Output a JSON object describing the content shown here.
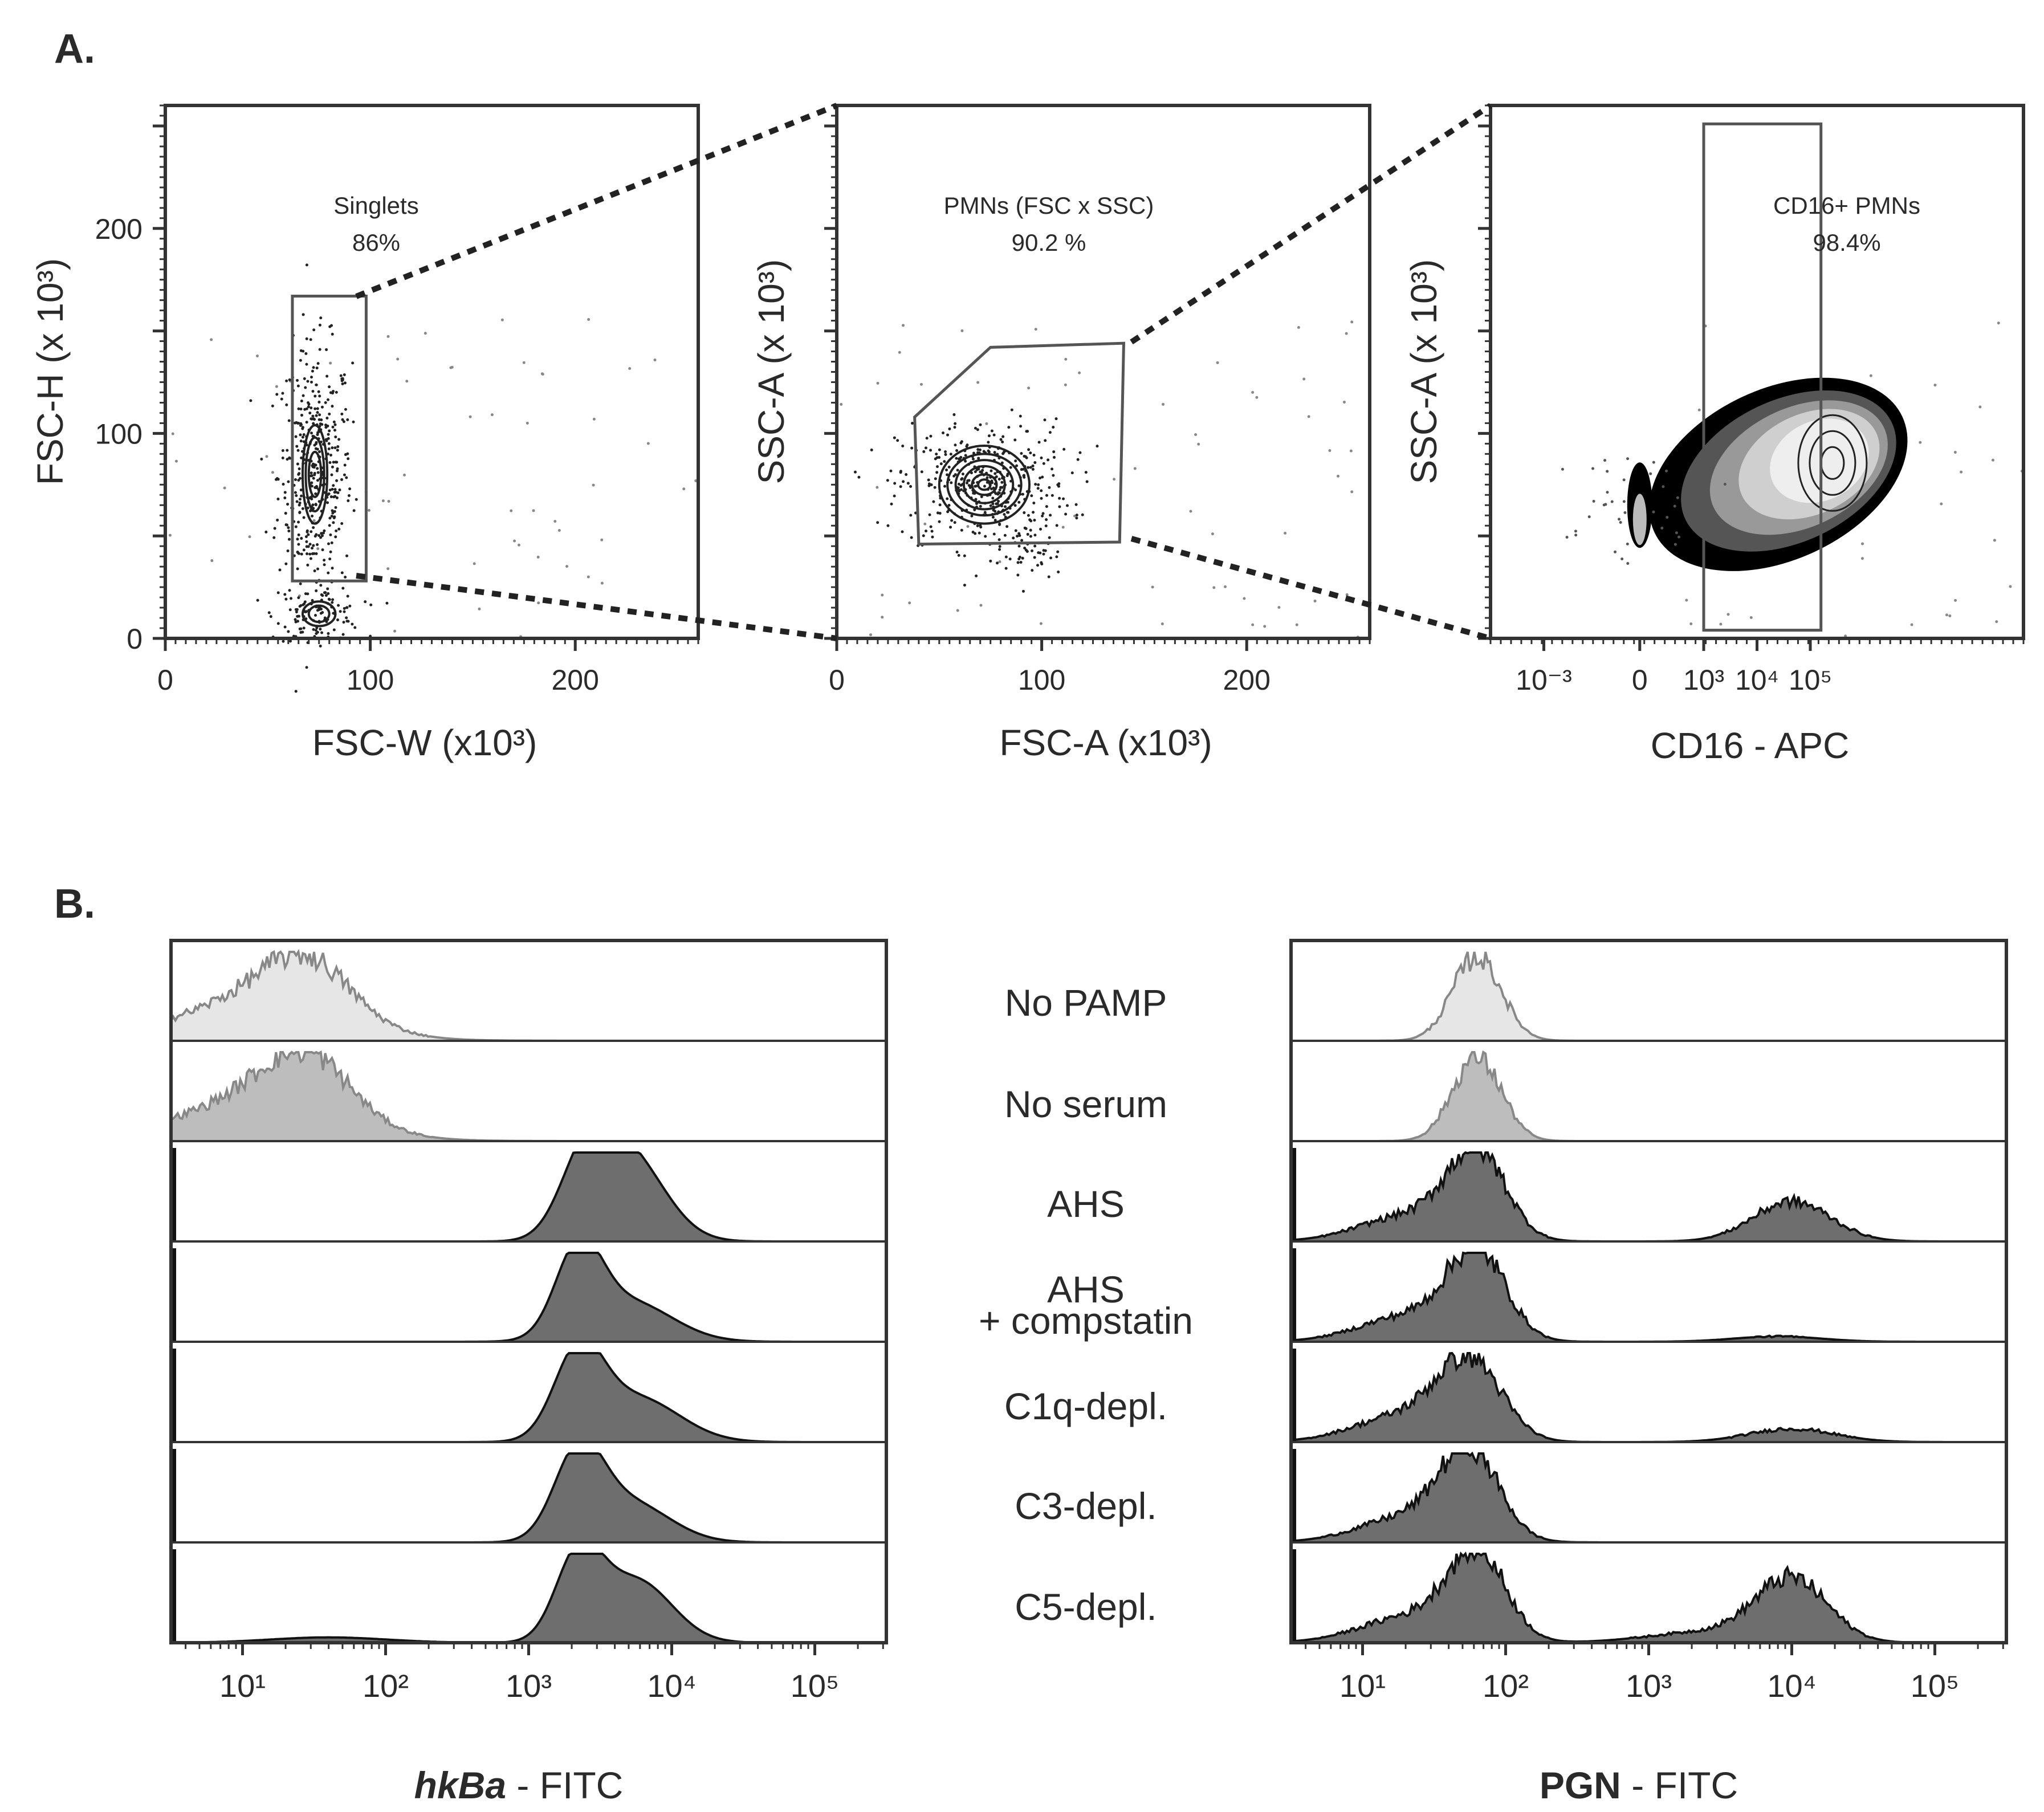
{
  "panel_labels": {
    "a": "A.",
    "b": "B."
  },
  "colors": {
    "frame": "#333333",
    "fill_dark": "#6e6e6e",
    "fill_mid": "#bdbdbd",
    "fill_light": "#e6e6e6",
    "gate": "#555555"
  },
  "chart_data": [
    {
      "type": "scatter",
      "panel": "A1",
      "xlabel": "FSC-W (x10³)",
      "ylabel": "FSC-H (x 10³)",
      "xlim": [
        0,
        260
      ],
      "ylim": [
        0,
        260
      ],
      "xticks": [
        "0",
        "100",
        "200"
      ],
      "xtick_values": [
        0,
        100,
        200
      ],
      "yticks": [
        "0",
        "100",
        "200"
      ],
      "ytick_values": [
        0,
        100,
        200
      ],
      "gate": {
        "name": "Singlets",
        "percent": "86%"
      },
      "gate_polygon": [
        [
          62,
          28
        ],
        [
          62,
          167
        ],
        [
          98,
          167
        ],
        [
          98,
          28
        ]
      ],
      "populations": [
        {
          "cx": 73,
          "cy": 80,
          "sx": 6,
          "sy": 24,
          "n": 420,
          "rings": [
            [
              6,
              24
            ],
            [
              4.5,
              18
            ],
            [
              3,
              11
            ]
          ]
        },
        {
          "cx": 75,
          "cy": 12,
          "sx": 7,
          "sy": 5,
          "n": 110,
          "rings": [
            [
              8,
              6
            ],
            [
              5,
              4
            ]
          ]
        }
      ]
    },
    {
      "type": "scatter",
      "panel": "A2",
      "xlabel": "FSC-A (x10³)",
      "ylabel": "SSC-A (x 10³)",
      "xlim": [
        0,
        260
      ],
      "ylim": [
        0,
        260
      ],
      "xticks": [
        "0",
        "100",
        "200"
      ],
      "xtick_values": [
        0,
        100,
        200
      ],
      "yticks": [],
      "ytick_values": [],
      "gate": {
        "name": "PMNs (FSC x SSC)",
        "percent": "90.2 %"
      },
      "gate_polygon": [
        [
          38,
          108
        ],
        [
          75,
          142
        ],
        [
          140,
          144
        ],
        [
          138,
          47
        ],
        [
          40,
          46
        ]
      ],
      "populations": [
        {
          "cx": 72,
          "cy": 75,
          "sx": 14,
          "sy": 12,
          "n": 420,
          "rings": [
            [
              22,
              19
            ],
            [
              18,
              15
            ],
            [
              14,
              12
            ],
            [
              10,
              9
            ],
            [
              6,
              5
            ],
            [
              3,
              2.5
            ]
          ]
        },
        {
          "cx": 95,
          "cy": 40,
          "sx": 5,
          "sy": 5,
          "n": 40,
          "rings": []
        }
      ]
    },
    {
      "type": "scatter",
      "panel": "A3",
      "xlabel": "CD16 - APC",
      "ylabel": "SSC-A (x 10³)",
      "xlim": [
        -4,
        6
      ],
      "ylim": [
        0,
        260
      ],
      "xticks": [
        "10⁻³",
        "0",
        "10³",
        "10⁴",
        "10⁵"
      ],
      "xtick_values": [
        -3,
        -1.2,
        0,
        1,
        2
      ],
      "yticks": [],
      "ytick_values": [],
      "gate": {
        "name": "CD16+ PMNs",
        "percent": "98.4%"
      },
      "gate_polygon": [
        [
          0,
          4
        ],
        [
          0,
          251
        ],
        [
          2.2,
          251
        ],
        [
          2.2,
          4
        ]
      ],
      "populations": [
        {
          "cx": 1.4,
          "cy": 80,
          "sx": 0.35,
          "sy": 22,
          "n": 80,
          "rings": []
        },
        {
          "cx": -1.2,
          "cy": 65,
          "sx": 0.05,
          "sy": 10,
          "n": 20,
          "rings": []
        }
      ]
    },
    {
      "type": "area",
      "panel": "B1",
      "xlabel_bold": "hkBa",
      "xlabel_rest": " - FITC",
      "xlim": [
        0.5,
        5.5
      ],
      "xticks": [
        "10¹",
        "10²",
        "10³",
        "10⁴",
        "10⁵"
      ],
      "xtick_values": [
        1,
        2,
        3,
        4,
        5
      ],
      "series": [
        {
          "name": "No PAMP",
          "shade": "light",
          "peaks": [
            [
              1.1,
              0.55,
              0.45
            ],
            [
              1.45,
              0.3,
              0.6
            ]
          ],
          "noise": true
        },
        {
          "name": "No serum",
          "shade": "mid",
          "peaks": [
            [
              1.1,
              0.55,
              0.45
            ],
            [
              1.45,
              0.3,
              0.65
            ]
          ],
          "noise": true
        },
        {
          "name": "AHS",
          "shade": "dark",
          "peaks": [
            [
              3.4,
              0.18,
              0.8
            ],
            [
              3.7,
              0.25,
              0.95
            ]
          ],
          "noise": false
        },
        {
          "name": "AHS + compstatin",
          "shade": "dark",
          "peaks": [
            [
              3.35,
              0.16,
              0.95
            ],
            [
              3.7,
              0.3,
              0.45
            ]
          ],
          "noise": false
        },
        {
          "name": "C1q-depl.",
          "shade": "dark",
          "peaks": [
            [
              3.35,
              0.17,
              0.95
            ],
            [
              3.75,
              0.3,
              0.5
            ]
          ],
          "noise": false
        },
        {
          "name": "C3-depl.",
          "shade": "dark",
          "peaks": [
            [
              3.35,
              0.17,
              0.95
            ],
            [
              3.7,
              0.28,
              0.45
            ]
          ],
          "noise": false
        },
        {
          "name": "C5-depl.",
          "shade": "dark",
          "peaks": [
            [
              1.6,
              0.4,
              0.06
            ],
            [
              3.35,
              0.16,
              0.95
            ],
            [
              3.75,
              0.25,
              0.7
            ]
          ],
          "noise": false
        }
      ]
    },
    {
      "type": "area",
      "panel": "B2",
      "xlabel_bold": "PGN",
      "xlabel_rest": " - FITC",
      "xlim": [
        0.5,
        5.5
      ],
      "xticks": [
        "10¹",
        "10²",
        "10³",
        "10⁴",
        "10⁵"
      ],
      "xtick_values": [
        1,
        2,
        3,
        4,
        5
      ],
      "series": [
        {
          "name": "No PAMP",
          "shade": "light",
          "peaks": [
            [
              1.8,
              0.17,
              0.95
            ]
          ],
          "noise": true
        },
        {
          "name": "No serum",
          "shade": "mid",
          "peaks": [
            [
              1.8,
              0.17,
              0.95
            ]
          ],
          "noise": true
        },
        {
          "name": "AHS",
          "shade": "dark",
          "peaks": [
            [
              1.8,
              0.2,
              0.95
            ],
            [
              1.35,
              0.35,
              0.3
            ],
            [
              4.0,
              0.27,
              0.45
            ]
          ],
          "noise": true
        },
        {
          "name": "AHS + compstatin",
          "shade": "dark",
          "peaks": [
            [
              1.8,
              0.2,
              0.95
            ],
            [
              1.35,
              0.35,
              0.3
            ],
            [
              3.9,
              0.3,
              0.06
            ]
          ],
          "noise": true
        },
        {
          "name": "C1q-depl.",
          "shade": "dark",
          "peaks": [
            [
              1.75,
              0.22,
              0.85
            ],
            [
              1.3,
              0.35,
              0.3
            ],
            [
              4.0,
              0.3,
              0.15
            ]
          ],
          "noise": true
        },
        {
          "name": "C3-depl.",
          "shade": "dark",
          "peaks": [
            [
              1.75,
              0.2,
              0.95
            ],
            [
              1.35,
              0.35,
              0.3
            ]
          ],
          "noise": true
        },
        {
          "name": "C5-depl.",
          "shade": "dark",
          "peaks": [
            [
              1.8,
              0.2,
              0.95
            ],
            [
              1.35,
              0.35,
              0.3
            ],
            [
              3.4,
              0.4,
              0.12
            ],
            [
              4.0,
              0.25,
              0.7
            ]
          ],
          "noise": true
        }
      ]
    }
  ],
  "center_labels": {
    "no_pamp": "No PAMP",
    "no_serum": "No serum",
    "ahs": "AHS",
    "ahs_comp_line1": "AHS",
    "ahs_comp_line2": "+ compstatin",
    "c1q": "C1q-depl.",
    "c3": "C3-depl.",
    "c5": "C5-depl."
  }
}
